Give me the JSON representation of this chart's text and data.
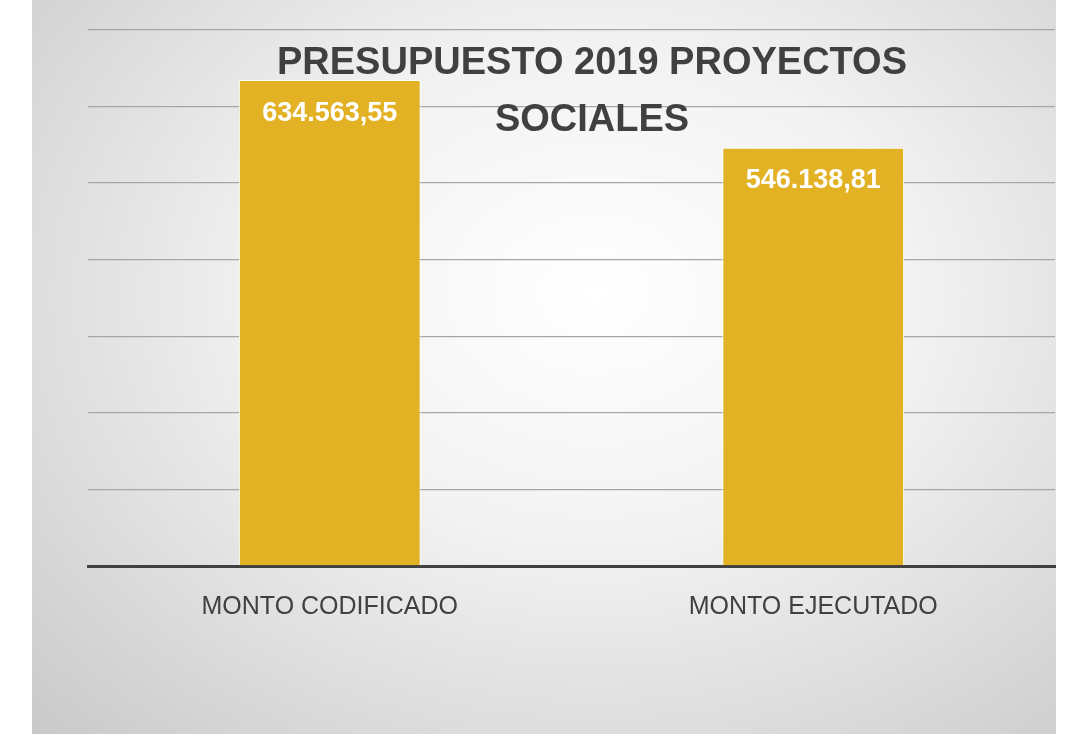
{
  "chart_data": {
    "type": "bar",
    "title": "PRESUPUESTO 2019 PROYECTOS SOCIALES",
    "categories": [
      "MONTO CODIFICADO",
      "MONTO EJECUTADO"
    ],
    "values": [
      634563.55,
      546138.81
    ],
    "value_labels": [
      "634.563,55",
      "546.138,81"
    ],
    "color": "#e2b224",
    "ylim": [
      0,
      700000
    ],
    "yticks": [
      {
        "value": 0,
        "label": null
      },
      {
        "value": 100000,
        "label": null
      },
      {
        "value": 200000,
        "label": null
      },
      {
        "value": 300000,
        "label": null
      },
      {
        "value": 400000,
        "label": null
      },
      {
        "value": 500000,
        "label": null
      },
      {
        "value": 600000,
        "label": null
      },
      {
        "value": 700000,
        "label": null
      }
    ],
    "tick_labels": "x",
    "grid": "y",
    "legend": false
  }
}
